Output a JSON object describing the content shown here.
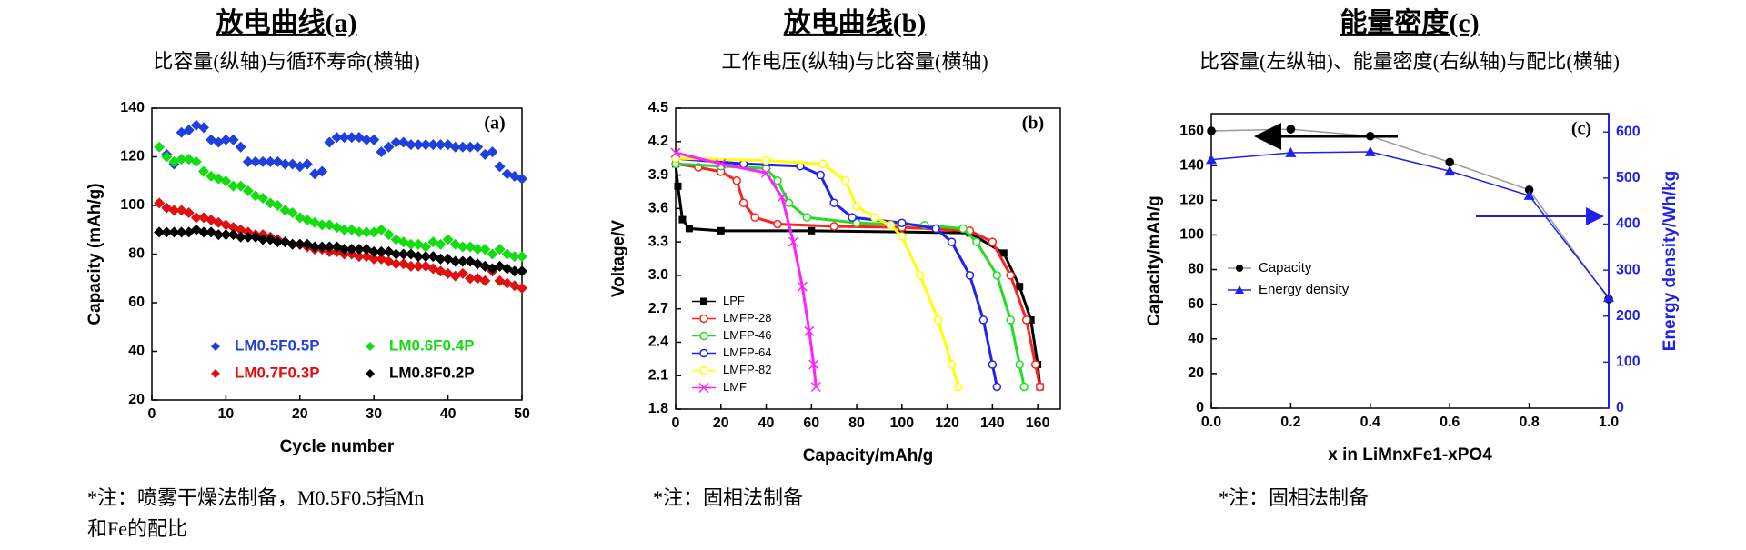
{
  "panels": [
    {
      "title": "放电曲线(a)",
      "subtitle": "比容量(纵轴)与循环寿命(横轴)",
      "note": [
        "*注：喷雾干燥法制备，M0.5F0.5指Mn",
        "和Fe的配比"
      ]
    },
    {
      "title": "放电曲线(b)",
      "subtitle": "工作电压(纵轴)与比容量(横轴)",
      "note": [
        "*注：固相法制备"
      ]
    },
    {
      "title": "能量密度(c)",
      "subtitle": "比容量(左纵轴)、能量密度(右纵轴)与配比(横轴)",
      "note": [
        "*注：固相法制备"
      ]
    }
  ],
  "chart_data": [
    {
      "type": "scatter",
      "annotation": "(a)",
      "x_label": "Cycle number",
      "y_label": "Capacity (mAh/g)",
      "xlim": [
        0,
        50
      ],
      "xticks": [
        0,
        10,
        20,
        30,
        40,
        50
      ],
      "ylim": [
        20,
        140
      ],
      "yticks": [
        20,
        40,
        60,
        80,
        100,
        120,
        140
      ],
      "legend": "lower right",
      "legend_columns": 2,
      "legend_text_colored": true,
      "x": [
        1,
        2,
        3,
        4,
        5,
        6,
        7,
        8,
        9,
        10,
        11,
        12,
        13,
        14,
        15,
        16,
        17,
        18,
        19,
        20,
        21,
        22,
        23,
        24,
        25,
        26,
        27,
        28,
        29,
        30,
        31,
        32,
        33,
        34,
        35,
        36,
        37,
        38,
        39,
        40,
        41,
        42,
        43,
        44,
        45,
        46,
        47,
        48,
        49,
        50
      ],
      "series": [
        {
          "name": "LM0.5F0.5P",
          "color": "#1f3fe0",
          "marker": "diamond",
          "values": [
            null,
            121,
            117,
            130,
            131,
            133,
            132,
            127,
            126,
            127,
            127,
            124,
            118,
            118,
            118,
            118,
            118,
            117,
            117,
            116,
            117,
            113,
            114,
            126,
            128,
            128,
            128,
            128,
            127,
            127,
            122,
            124,
            126,
            126,
            125,
            125,
            125,
            125,
            125,
            125,
            124,
            124,
            124,
            124,
            121,
            122,
            116,
            113,
            112,
            111
          ]
        },
        {
          "name": "LM0.6F0.4P",
          "color": "#11dd11",
          "marker": "diamond",
          "values": [
            124,
            120,
            118,
            119,
            119,
            118,
            114,
            112,
            111,
            110,
            108,
            108,
            106,
            104,
            103,
            101,
            100,
            98,
            97,
            95,
            94,
            93,
            92,
            92,
            91,
            90,
            90,
            89,
            89,
            89,
            90,
            88,
            86,
            85,
            84,
            84,
            83,
            85,
            84,
            86,
            84,
            83,
            83,
            82,
            82,
            80,
            82,
            80,
            79,
            79
          ]
        },
        {
          "name": "LM0.7F0.3P",
          "color": "#e01010",
          "marker": "diamond",
          "values": [
            101,
            99,
            98,
            98,
            97,
            95,
            95,
            94,
            93,
            92,
            91,
            90,
            89,
            88,
            88,
            87,
            86,
            85,
            84,
            84,
            83,
            82,
            82,
            81,
            81,
            80,
            80,
            79,
            79,
            78,
            78,
            77,
            76,
            76,
            75,
            75,
            75,
            74,
            73,
            72,
            71,
            72,
            70,
            70,
            69,
            73,
            69,
            68,
            67,
            66
          ]
        },
        {
          "name": "LM0.8F0.2P",
          "color": "#000000",
          "marker": "diamond",
          "values": [
            89,
            89,
            89,
            89,
            89,
            90,
            89,
            89,
            88,
            88,
            88,
            87,
            87,
            87,
            86,
            86,
            85,
            85,
            84,
            84,
            84,
            83,
            83,
            83,
            83,
            82,
            82,
            82,
            82,
            81,
            81,
            81,
            80,
            80,
            80,
            79,
            79,
            79,
            78,
            78,
            77,
            77,
            77,
            76,
            75,
            74,
            75,
            74,
            73,
            73
          ]
        }
      ]
    },
    {
      "type": "line",
      "annotation": "(b)",
      "x_label": "Capacity/mAh/g",
      "y_label": "Voltage/V",
      "xlim": [
        0,
        170
      ],
      "xticks": [
        0,
        20,
        40,
        60,
        80,
        100,
        120,
        140,
        160
      ],
      "ylim": [
        1.8,
        4.5
      ],
      "yticks": [
        1.8,
        2.1,
        2.4,
        2.7,
        {
          "value": 3,
          "label": "3.0"
        },
        3.3,
        3.6,
        3.9,
        4.2,
        4.5
      ],
      "legend": "lower left",
      "legend_columns": 1,
      "series": [
        {
          "name": "LPF",
          "color": "#000000",
          "marker": "square",
          "x": [
            0,
            1,
            3,
            6,
            20,
            60,
            100,
            130,
            145,
            152,
            157,
            160,
            161
          ],
          "values": [
            4.0,
            3.8,
            3.5,
            3.42,
            3.4,
            3.4,
            3.39,
            3.38,
            3.2,
            2.9,
            2.6,
            2.2,
            2.0
          ]
        },
        {
          "name": "LMFP-28",
          "color": "#ff2020",
          "marker": "open-circle",
          "x": [
            0,
            10,
            20,
            27,
            30,
            35,
            45,
            70,
            100,
            130,
            140,
            148,
            155,
            159,
            161
          ],
          "values": [
            4.0,
            3.97,
            3.93,
            3.85,
            3.65,
            3.52,
            3.46,
            3.44,
            3.43,
            3.4,
            3.3,
            3.0,
            2.6,
            2.2,
            2.0
          ]
        },
        {
          "name": "LMFP-46",
          "color": "#22dd22",
          "marker": "open-circle",
          "x": [
            0,
            20,
            40,
            45,
            50,
            58,
            80,
            110,
            127,
            133,
            142,
            148,
            152,
            154
          ],
          "values": [
            4.0,
            3.98,
            3.96,
            3.85,
            3.65,
            3.52,
            3.47,
            3.45,
            3.42,
            3.3,
            3.0,
            2.6,
            2.2,
            2.0
          ]
        },
        {
          "name": "LMFP-64",
          "color": "#2222ee",
          "marker": "open-circle",
          "x": [
            0,
            30,
            55,
            64,
            70,
            78,
            100,
            115,
            122,
            130,
            136,
            140,
            142
          ],
          "values": [
            4.05,
            4.0,
            3.98,
            3.9,
            3.65,
            3.52,
            3.47,
            3.42,
            3.3,
            3.0,
            2.6,
            2.2,
            2.0
          ]
        },
        {
          "name": "LMFP-82",
          "color": "#ffff00",
          "marker": "open-circle",
          "x": [
            0,
            40,
            65,
            75,
            80,
            88,
            95,
            100,
            108,
            116,
            122,
            125
          ],
          "values": [
            4.05,
            4.03,
            4.0,
            3.85,
            3.62,
            3.52,
            3.45,
            3.35,
            3.0,
            2.6,
            2.2,
            2.0
          ]
        },
        {
          "name": "LMF",
          "color": "#ff22ff",
          "marker": "cross",
          "x": [
            0,
            20,
            40,
            47,
            52,
            56,
            59,
            61,
            62
          ],
          "values": [
            4.1,
            4.0,
            3.92,
            3.7,
            3.3,
            2.9,
            2.5,
            2.2,
            2.0
          ]
        }
      ]
    },
    {
      "type": "line",
      "annotation": "(c)",
      "x_label": "x in LiMnxFe1-xPO4",
      "y_label": "Capacity/mAh/g",
      "y2_label": "Energy density/Wh/kg",
      "xlim": [
        0,
        1
      ],
      "xticks": [
        {
          "value": 0,
          "label": "0.0"
        },
        0.2,
        0.4,
        0.6,
        0.8,
        {
          "value": 1,
          "label": "1.0"
        }
      ],
      "ylim": [
        0,
        170
      ],
      "yticks": [
        0,
        20,
        40,
        60,
        80,
        100,
        120,
        140,
        160
      ],
      "y2lim": [
        0,
        640
      ],
      "y2ticks": [
        0,
        100,
        200,
        300,
        400,
        500,
        600
      ],
      "legend": "center left",
      "legend_columns": 1,
      "x": [
        0,
        0.2,
        0.4,
        0.6,
        0.8,
        1.0
      ],
      "series": [
        {
          "name": "Capacity",
          "color": "#000000",
          "line_color": "#999999",
          "marker": "circle",
          "values": [
            160,
            161,
            157,
            142,
            126,
            63
          ]
        },
        {
          "name": "Energy density",
          "color": "#2020ee",
          "marker": "triangle",
          "axis": "y2",
          "values": [
            540,
            555,
            557,
            515,
            462,
            240
          ]
        }
      ]
    }
  ]
}
